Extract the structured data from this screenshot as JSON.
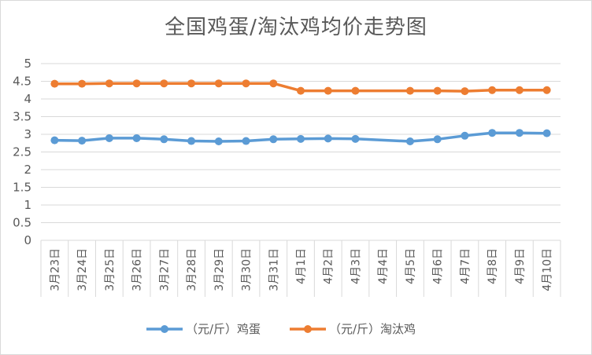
{
  "chart_data": {
    "type": "line",
    "title": "全国鸡蛋/淘汰鸡均价走势图",
    "categories": [
      "3月23日",
      "3月24日",
      "3月25日",
      "3月26日",
      "3月27日",
      "3月28日",
      "3月29日",
      "3月30日",
      "3月31日",
      "4月1日",
      "4月2日",
      "4月3日",
      "4月4日",
      "4月5日",
      "4月6日",
      "4月7日",
      "4月8日",
      "4月9日",
      "4月10日"
    ],
    "series": [
      {
        "name": "（元/斤）鸡蛋",
        "color": "#5B9BD5",
        "values": [
          2.83,
          2.82,
          2.89,
          2.89,
          2.86,
          2.81,
          2.8,
          2.81,
          2.86,
          2.87,
          2.88,
          2.87,
          null,
          2.8,
          2.86,
          2.96,
          3.04,
          3.04,
          3.03
        ]
      },
      {
        "name": "（元/斤）淘汰鸡",
        "color": "#ED7D31",
        "values": [
          4.43,
          4.43,
          4.44,
          4.44,
          4.44,
          4.44,
          4.44,
          4.44,
          4.44,
          4.23,
          4.23,
          4.23,
          null,
          4.23,
          4.23,
          4.22,
          4.25,
          4.25,
          4.25
        ]
      }
    ],
    "yticks": [
      "0",
      "0.5",
      "1",
      "1.5",
      "2",
      "2.5",
      "3",
      "3.5",
      "4",
      "4.5",
      "5"
    ],
    "ylim": [
      0,
      5
    ],
    "grid": true,
    "legend": "bottom"
  }
}
